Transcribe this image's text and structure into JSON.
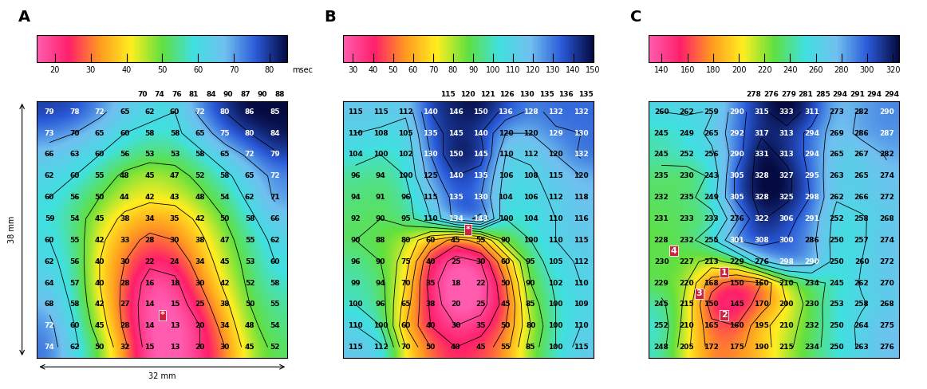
{
  "chart_data": [
    {
      "type": "heatmap",
      "title": "A",
      "tick_labels": false,
      "xlabel": "32 mm",
      "ylabel": "38 mm",
      "colorbar": {
        "range": [
          15,
          85
        ],
        "ticks": [
          20,
          30,
          40,
          50,
          60,
          70,
          80
        ],
        "label": "msec"
      },
      "top_row": [
        70,
        74,
        76,
        81,
        84,
        90,
        87,
        90,
        88
      ],
      "cells": [
        [
          79,
          78,
          72,
          65,
          62,
          60,
          72,
          80,
          86,
          85
        ],
        [
          73,
          70,
          65,
          60,
          58,
          58,
          65,
          75,
          80,
          84
        ],
        [
          66,
          63,
          60,
          56,
          53,
          53,
          58,
          65,
          72,
          79
        ],
        [
          62,
          60,
          55,
          48,
          45,
          47,
          52,
          58,
          65,
          72
        ],
        [
          60,
          56,
          50,
          44,
          42,
          43,
          48,
          54,
          62,
          71
        ],
        [
          59,
          54,
          45,
          38,
          34,
          35,
          42,
          50,
          58,
          66
        ],
        [
          60,
          55,
          42,
          33,
          28,
          30,
          38,
          47,
          55,
          62
        ],
        [
          62,
          56,
          40,
          30,
          22,
          24,
          34,
          45,
          53,
          60
        ],
        [
          64,
          57,
          40,
          28,
          16,
          18,
          30,
          42,
          52,
          58
        ],
        [
          68,
          58,
          42,
          27,
          14,
          15,
          25,
          38,
          50,
          55
        ],
        [
          72,
          60,
          45,
          28,
          14,
          13,
          20,
          34,
          48,
          54
        ],
        [
          74,
          62,
          50,
          32,
          15,
          13,
          20,
          30,
          45,
          52
        ]
      ],
      "markers": [
        {
          "text": "*",
          "row": 9.5,
          "col": 4.5
        }
      ]
    },
    {
      "type": "heatmap",
      "title": "B",
      "tick_labels": false,
      "colorbar": {
        "range": [
          25,
          150
        ],
        "ticks": [
          30,
          40,
          50,
          60,
          70,
          80,
          90,
          100,
          110,
          120,
          130,
          140,
          150
        ]
      },
      "top_row": [
        115,
        120,
        121,
        126,
        130,
        135,
        136,
        135
      ],
      "cells": [
        [
          115,
          115,
          112,
          140,
          146,
          150,
          136,
          128,
          132,
          132
        ],
        [
          110,
          108,
          105,
          135,
          145,
          140,
          120,
          120,
          129,
          130
        ],
        [
          104,
          100,
          102,
          130,
          150,
          145,
          110,
          112,
          120,
          132
        ],
        [
          96,
          94,
          100,
          125,
          140,
          135,
          106,
          108,
          115,
          120
        ],
        [
          94,
          91,
          96,
          115,
          135,
          130,
          104,
          106,
          112,
          118
        ],
        [
          92,
          90,
          95,
          110,
          134,
          143,
          100,
          104,
          110,
          116
        ],
        [
          90,
          88,
          80,
          60,
          45,
          55,
          90,
          100,
          110,
          115
        ],
        [
          96,
          90,
          75,
          40,
          25,
          30,
          60,
          95,
          105,
          112
        ],
        [
          99,
          94,
          70,
          35,
          18,
          22,
          50,
          90,
          102,
          110
        ],
        [
          100,
          96,
          65,
          38,
          20,
          25,
          45,
          85,
          100,
          109
        ],
        [
          110,
          100,
          60,
          40,
          30,
          35,
          50,
          80,
          100,
          110
        ],
        [
          115,
          112,
          70,
          50,
          40,
          45,
          55,
          85,
          100,
          115
        ]
      ],
      "markers": [
        {
          "text": "*",
          "row": 5.5,
          "col": 4.5
        }
      ]
    },
    {
      "type": "heatmap",
      "title": "C",
      "tick_labels": false,
      "colorbar": {
        "range": [
          130,
          325
        ],
        "ticks": [
          140,
          160,
          180,
          200,
          220,
          240,
          260,
          280,
          300,
          320
        ]
      },
      "top_row": [
        278,
        276,
        279,
        281,
        285,
        294,
        291,
        294,
        294
      ],
      "cells": [
        [
          260,
          262,
          259,
          290,
          315,
          333,
          311,
          273,
          282,
          290
        ],
        [
          245,
          249,
          265,
          292,
          317,
          313,
          294,
          269,
          286,
          287
        ],
        [
          245,
          252,
          256,
          290,
          331,
          313,
          294,
          265,
          267,
          282
        ],
        [
          235,
          230,
          243,
          305,
          328,
          327,
          295,
          263,
          265,
          274
        ],
        [
          232,
          235,
          249,
          305,
          328,
          325,
          298,
          262,
          266,
          272
        ],
        [
          231,
          233,
          233,
          276,
          322,
          306,
          291,
          252,
          258,
          268
        ],
        [
          228,
          232,
          255,
          301,
          308,
          300,
          286,
          250,
          257,
          274
        ],
        [
          230,
          227,
          213,
          229,
          276,
          298,
          290,
          250,
          260,
          272
        ],
        [
          229,
          220,
          168,
          150,
          160,
          210,
          234,
          245,
          262,
          270
        ],
        [
          245,
          215,
          150,
          145,
          170,
          200,
          230,
          253,
          258,
          268
        ],
        [
          252,
          210,
          165,
          160,
          195,
          210,
          232,
          250,
          264,
          275
        ],
        [
          248,
          205,
          172,
          175,
          190,
          215,
          234,
          250,
          263,
          276
        ]
      ],
      "markers": [
        {
          "text": "1",
          "row": 7.5,
          "col": 2.5
        },
        {
          "text": "2",
          "row": 9.5,
          "col": 2.5
        },
        {
          "text": "3",
          "row": 8.5,
          "col": 1.5
        },
        {
          "text": "4",
          "row": 6.5,
          "col": 0.5
        }
      ]
    }
  ]
}
